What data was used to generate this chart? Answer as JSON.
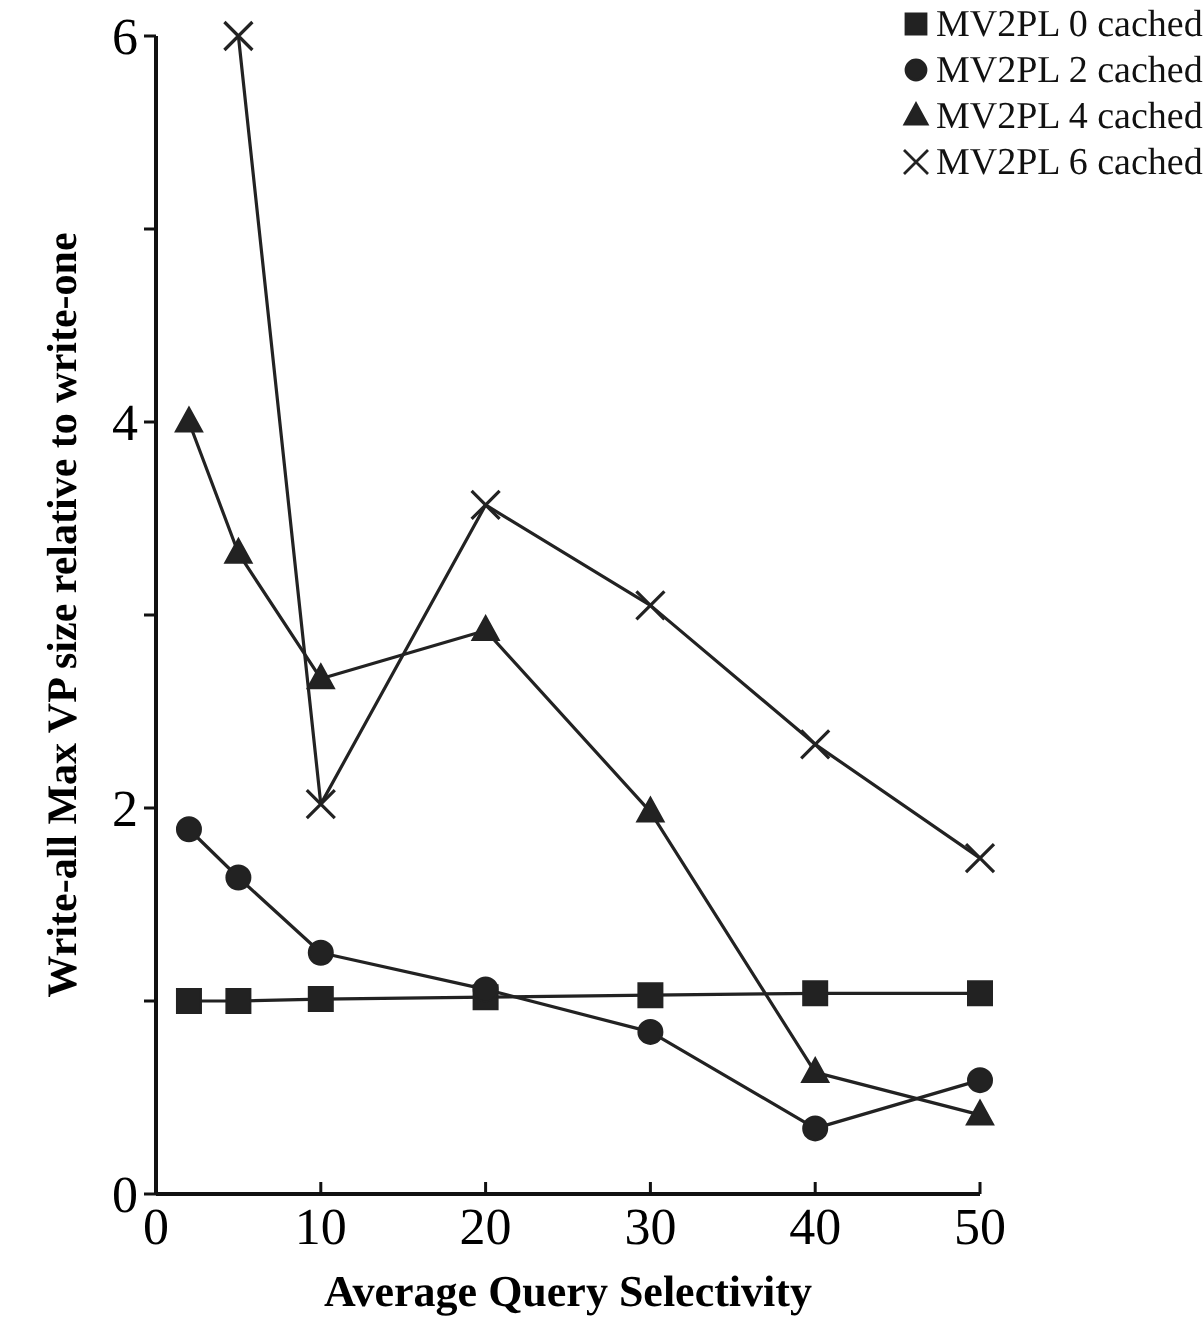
{
  "chart_data": {
    "type": "line",
    "xlabel": "Average Query Selectivity",
    "ylabel": "Write-all Max VP size relative to write-one",
    "x": [
      2,
      5,
      10,
      20,
      30,
      40,
      50
    ],
    "series": [
      {
        "name": "MV2PL 0 cached",
        "color": "#222222",
        "marker": "square",
        "values": [
          1.0,
          1.0,
          1.01,
          1.02,
          1.03,
          1.04,
          1.04
        ]
      },
      {
        "name": "MV2PL 2 cached",
        "color": "#222222",
        "marker": "circle",
        "values": [
          1.89,
          1.64,
          1.25,
          1.06,
          0.84,
          0.34,
          0.59
        ]
      },
      {
        "name": "MV2PL 4 cached",
        "color": "#222222",
        "marker": "triangle",
        "values": [
          4.0,
          3.32,
          2.67,
          2.92,
          1.98,
          0.63,
          0.41
        ]
      },
      {
        "name": "MV2PL 6 cached",
        "color": "#222222",
        "marker": "cross",
        "values": [
          null,
          6.0,
          2.02,
          3.57,
          3.05,
          2.33,
          1.74
        ]
      }
    ],
    "xlim": [
      0,
      50
    ],
    "xticks": [
      0,
      10,
      20,
      30,
      40,
      50
    ],
    "ylim": [
      0,
      6
    ],
    "yticks": [
      0,
      {
        "value": 1,
        "label": null
      },
      2,
      {
        "value": 3,
        "label": null
      },
      4,
      {
        "value": 5,
        "label": null
      },
      6
    ],
    "legend": "top right",
    "grid": false,
    "line_style": "solid"
  }
}
